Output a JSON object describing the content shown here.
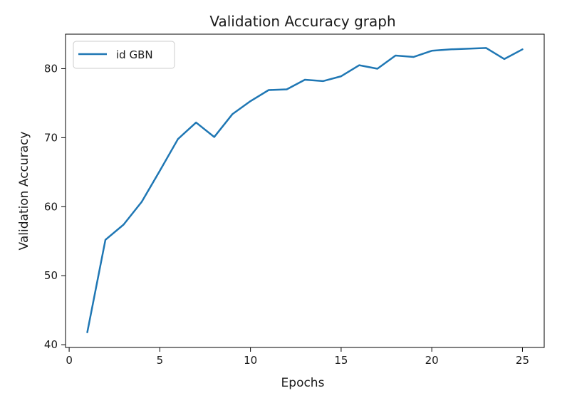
{
  "chart_data": {
    "type": "line",
    "title": "Validation Accuracy graph",
    "xlabel": "Epochs",
    "ylabel": "Validation Accuracy",
    "xlim": [
      -0.2,
      26.2
    ],
    "ylim": [
      39.6,
      85.0
    ],
    "xticks": [
      0,
      5,
      10,
      15,
      20,
      25
    ],
    "yticks": [
      40,
      50,
      60,
      70,
      80
    ],
    "grid": false,
    "legend_position": "top-left",
    "series": [
      {
        "name": "id GBN",
        "color": "#1f77b4",
        "x": [
          1,
          2,
          3,
          4,
          5,
          6,
          7,
          8,
          9,
          10,
          11,
          12,
          13,
          14,
          15,
          16,
          17,
          18,
          19,
          20,
          21,
          22,
          23,
          24,
          25
        ],
        "y": [
          41.8,
          55.2,
          57.4,
          60.7,
          65.2,
          69.8,
          72.2,
          70.1,
          73.4,
          75.3,
          76.9,
          77.0,
          78.4,
          78.2,
          78.9,
          80.5,
          80.0,
          81.9,
          81.7,
          82.6,
          82.8,
          82.9,
          83.0,
          81.4,
          82.8
        ]
      }
    ]
  }
}
